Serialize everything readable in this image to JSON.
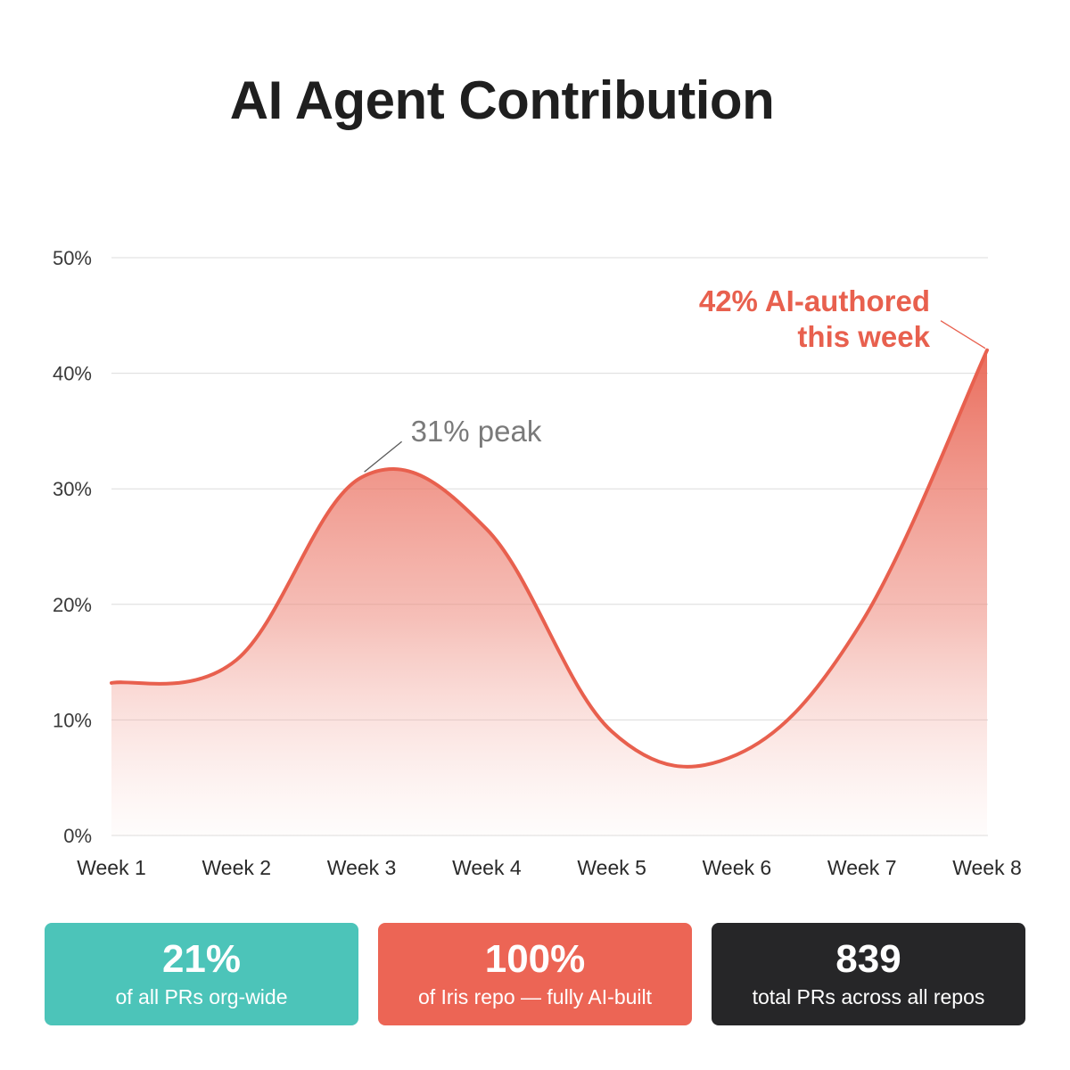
{
  "title": "AI Agent Contribution",
  "chart_data": {
    "type": "area",
    "title": "AI Agent Contribution",
    "categories": [
      "Week 1",
      "Week 2",
      "Week 3",
      "Week 4",
      "Week 5",
      "Week 6",
      "Week 7",
      "Week 8"
    ],
    "values": [
      13.2,
      15.2,
      31.0,
      26.5,
      9.0,
      7.0,
      18.5,
      42.0
    ],
    "ylim": [
      0,
      50
    ],
    "yticks": [
      "0%",
      "10%",
      "20%",
      "30%",
      "40%",
      "50%"
    ],
    "grid": true,
    "color": "#e8604e",
    "annotations": [
      {
        "text": "31% peak",
        "category": "Week 3"
      },
      {
        "text_line1": "42% AI-authored",
        "text_line2": "this week",
        "category": "Week 8"
      }
    ]
  },
  "stats": [
    {
      "value": "21%",
      "label": "of all PRs org-wide",
      "color": "#4cc4b9"
    },
    {
      "value": "100%",
      "label": "of Iris repo — fully AI-built",
      "color": "#ec6555"
    },
    {
      "value": "839",
      "label": "total PRs across all repos",
      "color": "#262628"
    }
  ]
}
